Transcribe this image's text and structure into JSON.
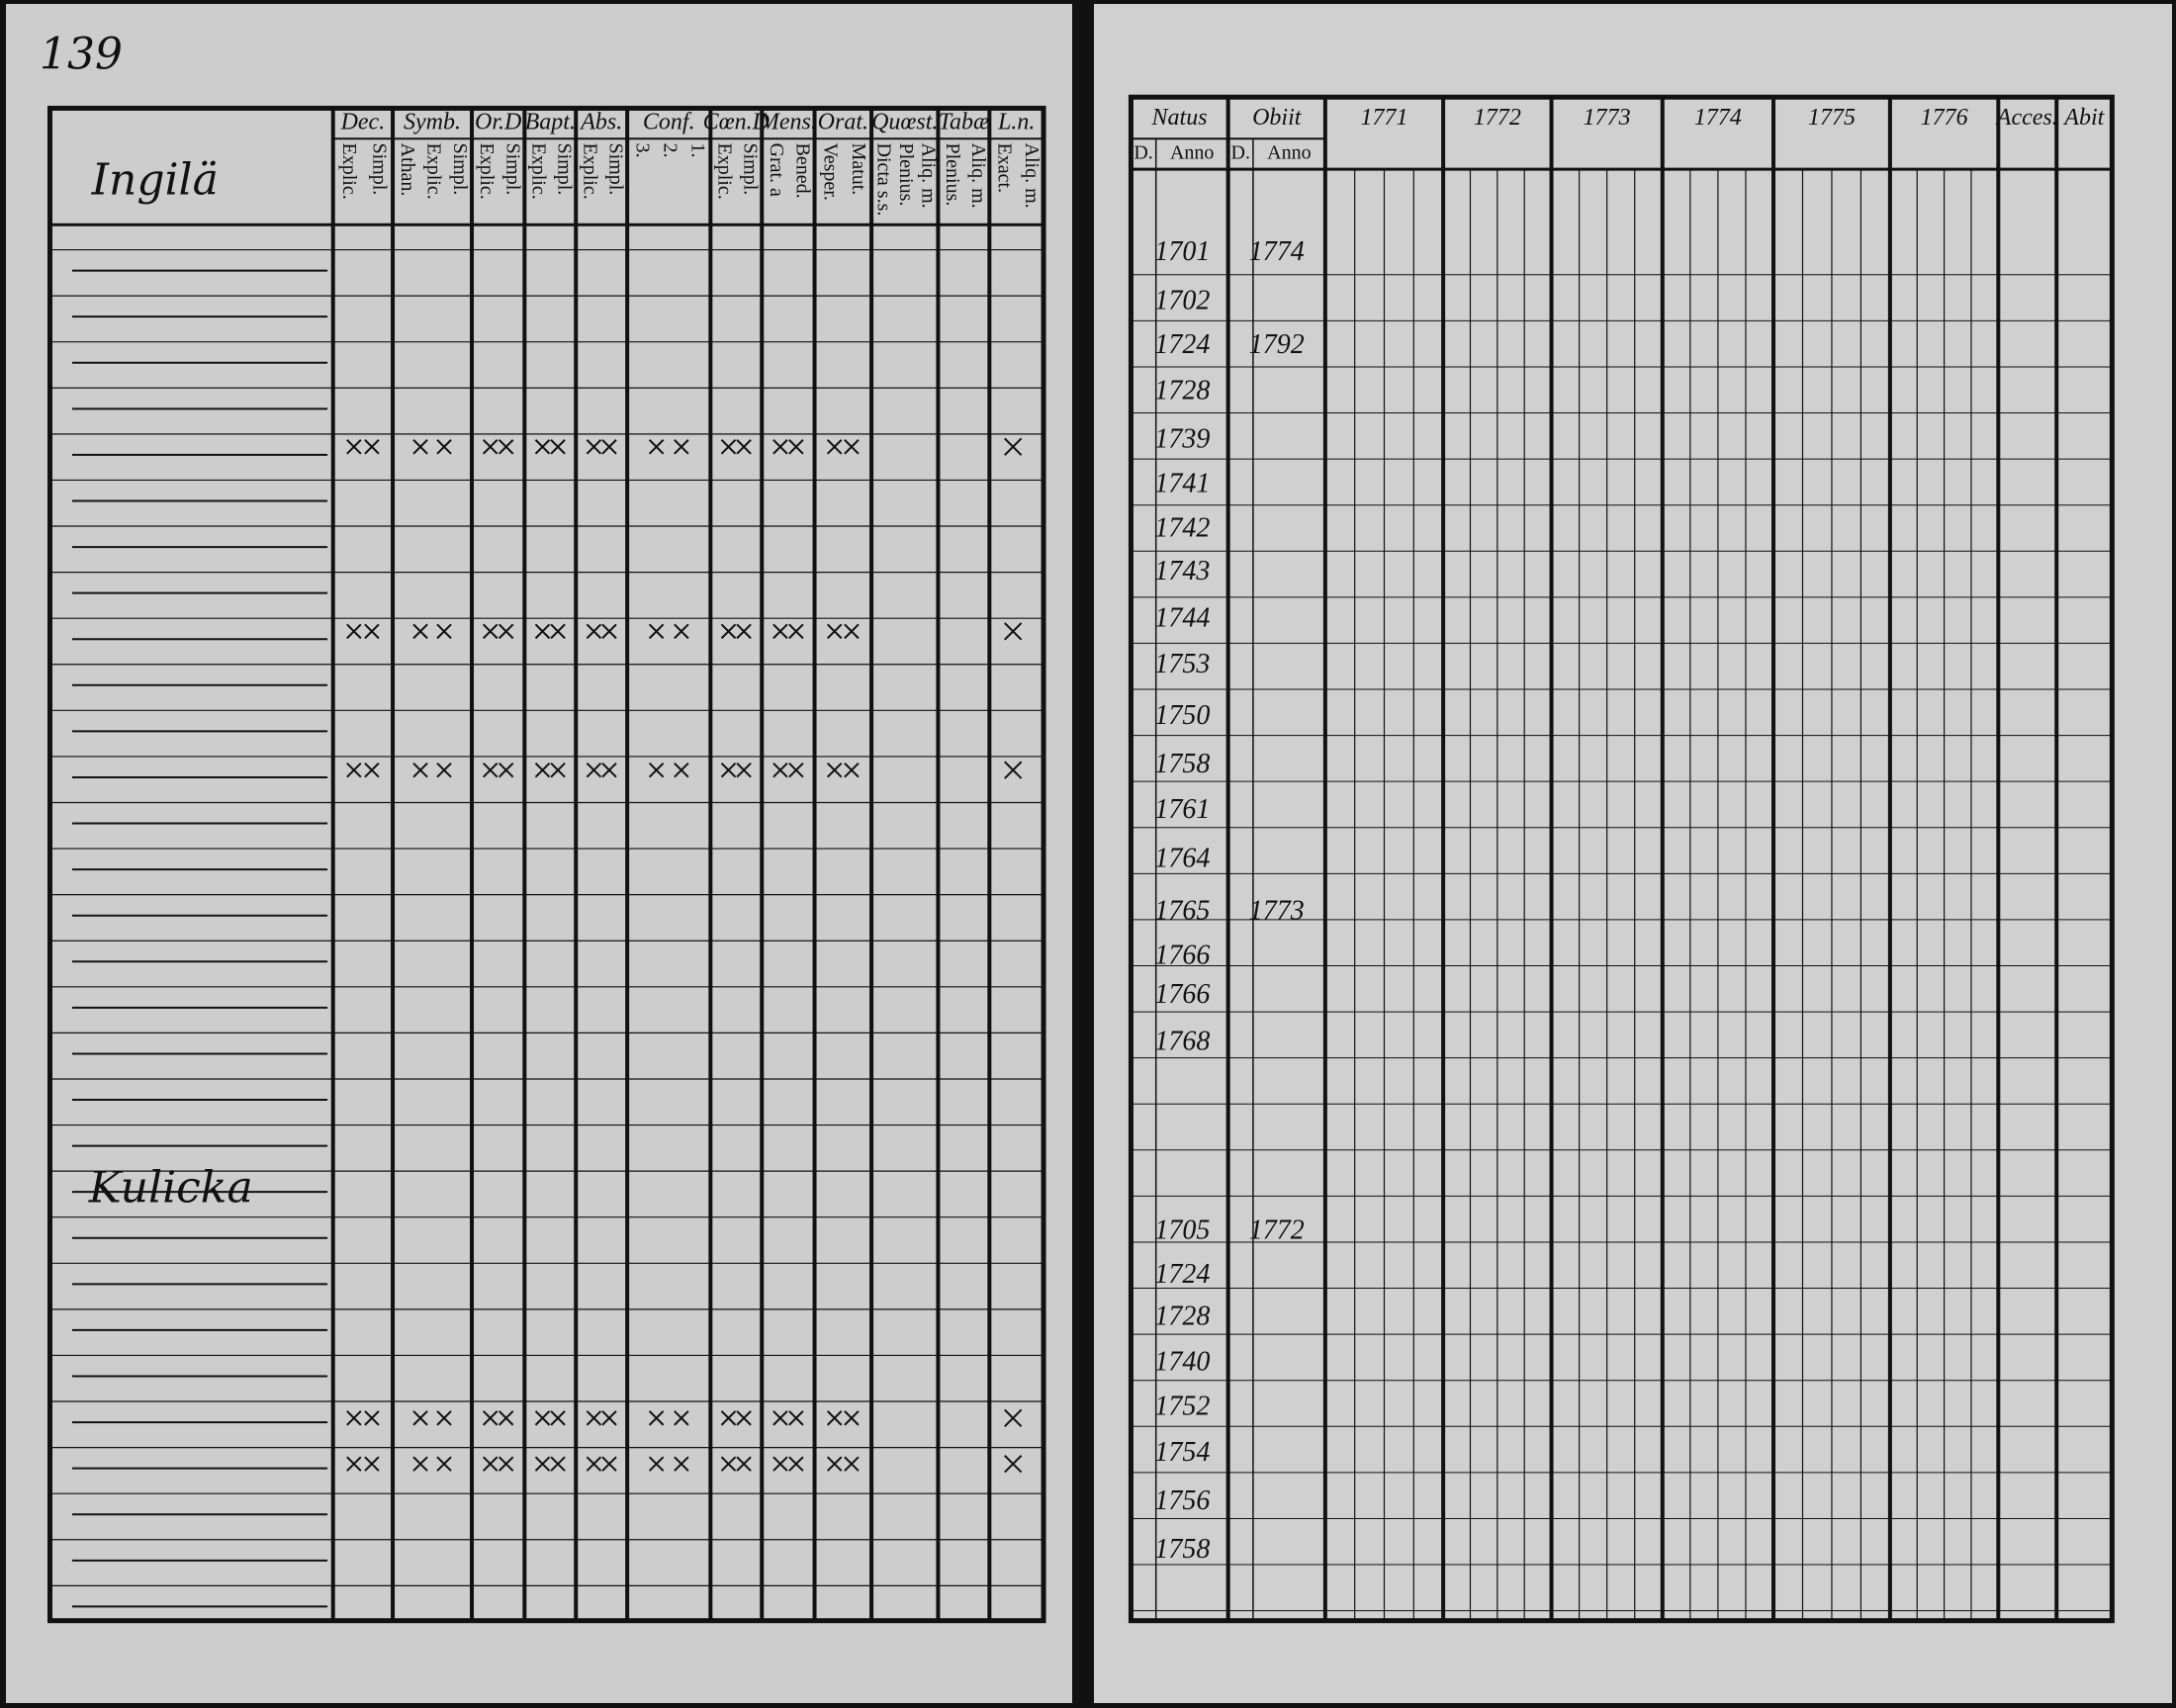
{
  "page_number": "139",
  "left_page": {
    "section_1": "Ingilä",
    "section_2": "Kulicka",
    "columns": [
      {
        "label": "Dec.",
        "sub": [
          "Explic.",
          "Simpl."
        ]
      },
      {
        "label": "Symb.",
        "sub": [
          "Athan.",
          "Explic.",
          "Simpl."
        ]
      },
      {
        "label": "Or.D",
        "sub": [
          "Explic.",
          "Simpl."
        ]
      },
      {
        "label": "Bapt.",
        "sub": [
          "Explic.",
          "Simpl."
        ]
      },
      {
        "label": "Abs.",
        "sub": [
          "Explic.",
          "Simpl."
        ]
      },
      {
        "label": "Conf.",
        "sub": [
          "3.",
          "2.",
          "1."
        ]
      },
      {
        "label": "Cœn.D",
        "sub": [
          "Explic.",
          "Simpl."
        ]
      },
      {
        "label": "Mens.",
        "sub": [
          "Grat. a",
          "Bened."
        ]
      },
      {
        "label": "Orat.",
        "sub": [
          "Vesper.",
          "Matut."
        ]
      },
      {
        "label": "Quœst.",
        "sub": [
          "Dicta s.s.",
          "Plenius.",
          "Aliq. m."
        ]
      },
      {
        "label": "Tabæ",
        "sub": [
          "Plenius.",
          "Aliq. m."
        ]
      },
      {
        "label": "L.n.",
        "sub": [
          "Exact.",
          "Aliq. m."
        ]
      }
    ]
  },
  "right_page": {
    "columns": [
      {
        "label": "Natus",
        "sub": [
          "D.",
          "Anno"
        ]
      },
      {
        "label": "Obiit",
        "sub": [
          "D.",
          "Anno"
        ]
      },
      {
        "label": "1771"
      },
      {
        "label": "1772"
      },
      {
        "label": "1773"
      },
      {
        "label": "1774"
      },
      {
        "label": "1775"
      },
      {
        "label": "1776"
      },
      {
        "label": "Acces."
      },
      {
        "label": "Abit"
      }
    ],
    "rows": [
      {
        "born": "1701",
        "died": "1774"
      },
      {
        "born": "1702"
      },
      {
        "born": "1724",
        "died": "1792"
      },
      {
        "born": "1728"
      },
      {
        "born": "1739"
      },
      {
        "born": "1741"
      },
      {
        "born": "1742"
      },
      {
        "born": "1743"
      },
      {
        "born": "1744"
      },
      {
        "born": "1753"
      },
      {
        "born": "1750"
      },
      {
        "born": "1758"
      },
      {
        "born": "1761"
      },
      {
        "born": "1764"
      },
      {
        "born": "1765",
        "died": "1773"
      },
      {
        "born": "1766"
      },
      {
        "born": "1766"
      },
      {
        "born": "1768"
      },
      {
        "born": "1705",
        "died": "1772"
      },
      {
        "born": "1724"
      },
      {
        "born": "1728"
      },
      {
        "born": "1740"
      },
      {
        "born": "1752"
      },
      {
        "born": "1754"
      },
      {
        "born": "1756"
      },
      {
        "born": "1758"
      }
    ]
  }
}
